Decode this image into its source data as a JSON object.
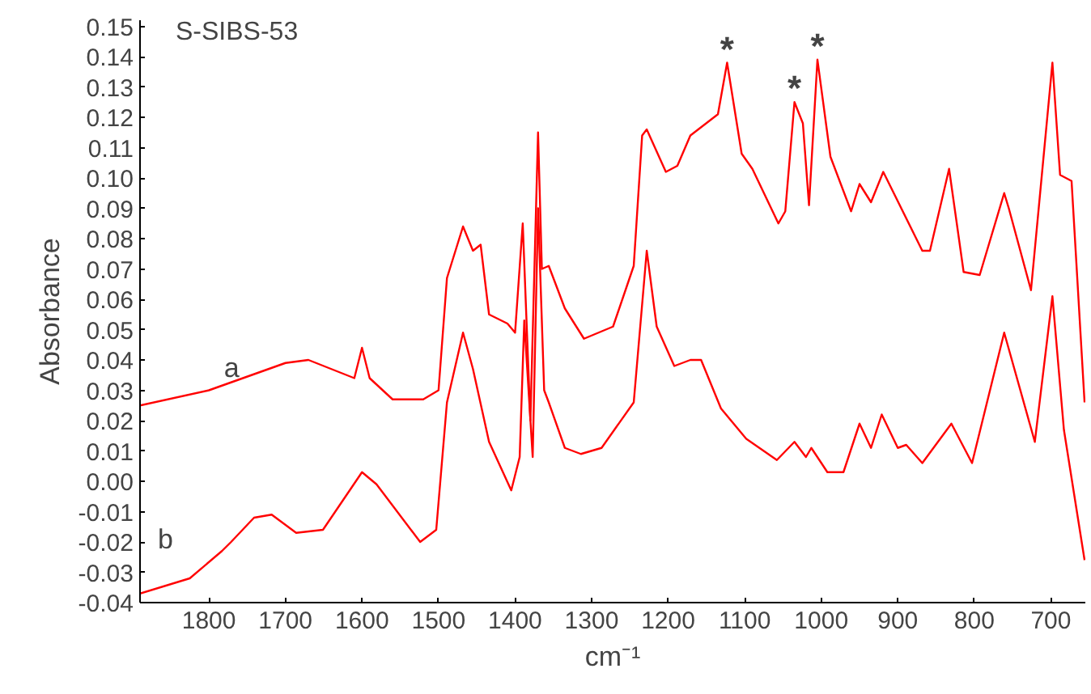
{
  "chart_data": {
    "type": "line",
    "title": "S-SIBS-53",
    "xlabel": "cm⁻¹",
    "ylabel": "Absorbance",
    "xlim": [
      1890,
      655
    ],
    "ylim": [
      -0.04,
      0.152
    ],
    "xticks": [
      1800,
      1700,
      1600,
      1500,
      1400,
      1300,
      1200,
      1100,
      1000,
      900,
      800,
      700
    ],
    "yticks": [
      {
        "value": -0.04,
        "label": "-0.04"
      },
      {
        "value": -0.03,
        "label": "-0.03"
      },
      {
        "value": -0.02,
        "label": "-0.02"
      },
      {
        "value": -0.01,
        "label": "-0.01"
      },
      {
        "value": 0,
        "label": "0.00"
      },
      {
        "value": 0.01,
        "label": "0.01"
      },
      {
        "value": 0.02,
        "label": "0.02"
      },
      {
        "value": 0.03,
        "label": "0.03"
      },
      {
        "value": 0.04,
        "label": "0.04"
      },
      {
        "value": 0.05,
        "label": "0.05"
      },
      {
        "value": 0.06,
        "label": "0.06"
      },
      {
        "value": 0.07,
        "label": "0.07"
      },
      {
        "value": 0.08,
        "label": "0.08"
      },
      {
        "value": 0.09,
        "label": "0.09"
      },
      {
        "value": 0.1,
        "label": "0.10"
      },
      {
        "value": 0.11,
        "label": "0.11"
      },
      {
        "value": 0.12,
        "label": "0.12"
      },
      {
        "value": 0.13,
        "label": "0.13"
      },
      {
        "value": 0.14,
        "label": "0.14"
      },
      {
        "value": 0.15,
        "label": "0.15"
      }
    ],
    "grid": false,
    "legend": false,
    "marker": "none",
    "line_style": "solid",
    "series": [
      {
        "name": "a",
        "color": "#ff0000",
        "x": [
          1890,
          1800,
          1700,
          1670,
          1610,
          1600,
          1590,
          1560,
          1520,
          1500,
          1489,
          1468,
          1455,
          1445,
          1434,
          1410,
          1400,
          1390,
          1380,
          1370,
          1365,
          1356,
          1335,
          1310,
          1272,
          1245,
          1234,
          1228,
          1203,
          1188,
          1171,
          1135,
          1123,
          1104,
          1090,
          1056,
          1047,
          1035,
          1024,
          1016,
          1005,
          988,
          961,
          950,
          935,
          919,
          868,
          858,
          833,
          814,
          793,
          761,
          755,
          726,
          698,
          688,
          673,
          656
        ],
        "values": [
          0.025,
          0.03,
          0.039,
          0.04,
          0.034,
          0.044,
          0.034,
          0.027,
          0.027,
          0.03,
          0.067,
          0.084,
          0.076,
          0.078,
          0.055,
          0.052,
          0.049,
          0.085,
          0.02,
          0.115,
          0.07,
          0.071,
          0.057,
          0.047,
          0.051,
          0.071,
          0.114,
          0.116,
          0.102,
          0.104,
          0.114,
          0.121,
          0.138,
          0.108,
          0.103,
          0.085,
          0.089,
          0.125,
          0.118,
          0.091,
          0.139,
          0.107,
          0.089,
          0.098,
          0.092,
          0.102,
          0.076,
          0.076,
          0.103,
          0.069,
          0.068,
          0.095,
          0.09,
          0.063,
          0.138,
          0.101,
          0.099,
          0.026
        ]
      },
      {
        "name": "b",
        "color": "#ff0000",
        "x": [
          1890,
          1825,
          1783,
          1771,
          1741,
          1718,
          1686,
          1651,
          1600,
          1581,
          1524,
          1503,
          1489,
          1468,
          1455,
          1434,
          1405,
          1394,
          1388,
          1377,
          1370,
          1362,
          1356,
          1335,
          1314,
          1287,
          1245,
          1228,
          1215,
          1192,
          1171,
          1157,
          1131,
          1098,
          1058,
          1035,
          1020,
          1013,
          992,
          971,
          950,
          935,
          921,
          900,
          889,
          868,
          830,
          803,
          761,
          721,
          698,
          683,
          656
        ],
        "values": [
          -0.037,
          -0.032,
          -0.023,
          -0.02,
          -0.012,
          -0.011,
          -0.017,
          -0.016,
          0.003,
          -0.001,
          -0.02,
          -0.016,
          0.026,
          0.049,
          0.037,
          0.013,
          -0.003,
          0.008,
          0.053,
          0.008,
          0.09,
          0.03,
          0.026,
          0.011,
          0.009,
          0.011,
          0.026,
          0.076,
          0.051,
          0.038,
          0.04,
          0.04,
          0.024,
          0.014,
          0.007,
          0.013,
          0.008,
          0.011,
          0.003,
          0.003,
          0.019,
          0.011,
          0.022,
          0.011,
          0.012,
          0.006,
          0.019,
          0.006,
          0.049,
          0.013,
          0.061,
          0.017,
          -0.026
        ]
      }
    ],
    "annotations": [
      {
        "text": "*",
        "x": 1123,
        "y": 0.138
      },
      {
        "text": "*",
        "x": 1035,
        "y": 0.125
      },
      {
        "text": "*",
        "x": 1005,
        "y": 0.139
      }
    ]
  }
}
